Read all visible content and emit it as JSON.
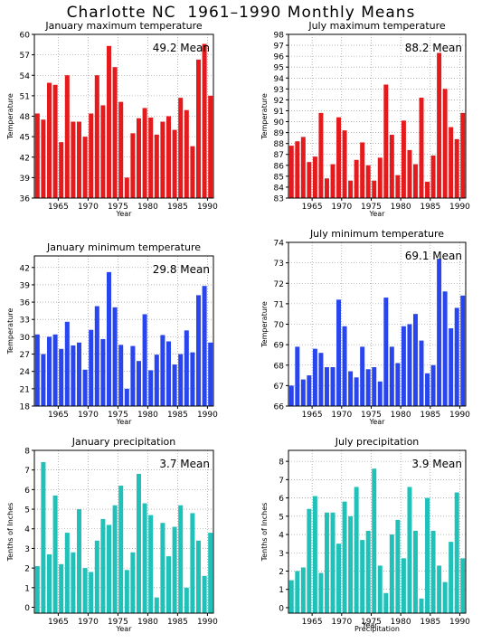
{
  "page_title": "Charlotte NC  1961–1990 Monthly Means",
  "chart_data": [
    {
      "type": "bar",
      "title": "January maximum temperature",
      "annotation": "49.2  Mean",
      "xlabel": "Year",
      "ylabel": "Temperature",
      "color": "#e41a1c",
      "ylim": [
        36,
        60
      ],
      "yticks": [
        36,
        39,
        42,
        45,
        48,
        51,
        54,
        57,
        60
      ],
      "xticks": [
        1965,
        1970,
        1975,
        1980,
        1985,
        1990
      ],
      "grid": true,
      "x": [
        1961,
        1962,
        1963,
        1964,
        1965,
        1966,
        1967,
        1968,
        1969,
        1970,
        1971,
        1972,
        1973,
        1974,
        1975,
        1976,
        1977,
        1978,
        1979,
        1980,
        1981,
        1982,
        1983,
        1984,
        1985,
        1986,
        1987,
        1988,
        1989,
        1990
      ],
      "values": [
        48.4,
        47.5,
        52.9,
        52.6,
        44.2,
        54.0,
        47.2,
        47.2,
        45.0,
        48.4,
        54.0,
        49.6,
        58.3,
        55.2,
        50.1,
        39.0,
        45.5,
        47.7,
        49.2,
        47.8,
        45.3,
        47.2,
        48.0,
        46.0,
        50.7,
        48.9,
        43.6,
        56.3,
        58.6,
        51.0
      ]
    },
    {
      "type": "bar",
      "title": "July maximum temperature",
      "annotation": "88.2  Mean",
      "xlabel": "Year",
      "ylabel": "Temperature",
      "color": "#e41a1c",
      "ylim": [
        83,
        98
      ],
      "yticks": [
        83,
        84,
        85,
        86,
        87,
        88,
        89,
        90,
        91,
        92,
        93,
        94,
        95,
        96,
        97,
        98
      ],
      "xticks": [
        1965,
        1970,
        1975,
        1980,
        1985,
        1990
      ],
      "grid": true,
      "x": [
        1961,
        1962,
        1963,
        1964,
        1965,
        1966,
        1967,
        1968,
        1969,
        1970,
        1971,
        1972,
        1973,
        1974,
        1975,
        1976,
        1977,
        1978,
        1979,
        1980,
        1981,
        1982,
        1983,
        1984,
        1985,
        1986,
        1987,
        1988,
        1989,
        1990
      ],
      "values": [
        87.8,
        88.2,
        88.6,
        86.3,
        86.8,
        90.8,
        84.8,
        86.1,
        90.4,
        89.2,
        84.6,
        86.5,
        88.1,
        86.0,
        84.6,
        86.7,
        93.4,
        88.8,
        85.1,
        90.1,
        87.4,
        86.1,
        92.2,
        84.5,
        86.9,
        96.3,
        93.0,
        89.5,
        88.4,
        90.8
      ]
    },
    {
      "type": "bar",
      "title": "January minimum temperature",
      "annotation": "29.8  Mean",
      "xlabel": "Year",
      "ylabel": "Temperature",
      "color": "#2845ee",
      "ylim": [
        18,
        44
      ],
      "yticks": [
        18,
        21,
        24,
        27,
        30,
        33,
        36,
        39,
        42
      ],
      "xticks": [
        1965,
        1970,
        1975,
        1980,
        1985,
        1990
      ],
      "grid": true,
      "x": [
        1961,
        1962,
        1963,
        1964,
        1965,
        1966,
        1967,
        1968,
        1969,
        1970,
        1971,
        1972,
        1973,
        1974,
        1975,
        1976,
        1977,
        1978,
        1979,
        1980,
        1981,
        1982,
        1983,
        1984,
        1985,
        1986,
        1987,
        1988,
        1989,
        1990
      ],
      "values": [
        30.4,
        27.0,
        30.0,
        30.4,
        27.9,
        32.6,
        28.5,
        29.0,
        24.3,
        31.2,
        35.3,
        29.6,
        41.2,
        35.1,
        28.6,
        21.0,
        28.4,
        25.8,
        33.9,
        24.2,
        26.9,
        30.3,
        29.2,
        25.2,
        27.0,
        31.1,
        27.3,
        37.2,
        38.8,
        29.0
      ]
    },
    {
      "type": "bar",
      "title": "July minimum temperature",
      "annotation": "69.1  Mean",
      "xlabel": "Year",
      "ylabel": "Temperature",
      "color": "#2845ee",
      "ylim": [
        66,
        74
      ],
      "yticks": [
        66,
        67,
        68,
        69,
        70,
        71,
        72,
        73,
        74
      ],
      "xticks": [
        1965,
        1970,
        1975,
        1980,
        1985,
        1990
      ],
      "grid": true,
      "x": [
        1961,
        1962,
        1963,
        1964,
        1965,
        1966,
        1967,
        1968,
        1969,
        1970,
        1971,
        1972,
        1973,
        1974,
        1975,
        1976,
        1977,
        1978,
        1979,
        1980,
        1981,
        1982,
        1983,
        1984,
        1985,
        1986,
        1987,
        1988,
        1989,
        1990
      ],
      "values": [
        67.0,
        68.9,
        67.3,
        67.5,
        68.8,
        68.6,
        67.9,
        67.9,
        71.2,
        69.9,
        67.7,
        67.4,
        68.9,
        67.8,
        67.9,
        67.2,
        71.3,
        68.9,
        68.1,
        69.9,
        70.0,
        70.5,
        69.2,
        67.6,
        68.0,
        73.2,
        71.6,
        69.8,
        70.8,
        71.4
      ]
    },
    {
      "type": "bar",
      "title": "January precipitation",
      "annotation": "3.7  Mean",
      "xlabel": "Year",
      "ylabel": "Tenths of Inches",
      "color": "#20c1b8",
      "ylim": [
        -0.3,
        8
      ],
      "yticks": [
        0,
        1,
        2,
        3,
        4,
        5,
        6,
        7,
        8
      ],
      "xticks": [
        1965,
        1970,
        1975,
        1980,
        1985,
        1990
      ],
      "grid": true,
      "x": [
        1961,
        1962,
        1963,
        1964,
        1965,
        1966,
        1967,
        1968,
        1969,
        1970,
        1971,
        1972,
        1973,
        1974,
        1975,
        1976,
        1977,
        1978,
        1979,
        1980,
        1981,
        1982,
        1983,
        1984,
        1985,
        1986,
        1987,
        1988,
        1989,
        1990
      ],
      "values": [
        2.1,
        7.4,
        2.7,
        5.7,
        2.2,
        3.8,
        2.8,
        5.0,
        2.0,
        1.8,
        3.4,
        4.5,
        4.2,
        5.2,
        6.2,
        1.9,
        2.8,
        6.8,
        5.3,
        4.7,
        0.5,
        4.3,
        2.6,
        4.1,
        5.2,
        1.0,
        4.8,
        3.4,
        1.6,
        3.8
      ]
    },
    {
      "type": "bar",
      "title": "July precipitation",
      "annotation": "3.9  Mean",
      "xlabel": "Precipitation",
      "ylabel": "Tenths of Inches",
      "color": "#20c1b8",
      "ylim": [
        -0.3,
        8.6
      ],
      "yticks": [
        0,
        1,
        2,
        3,
        4,
        5,
        6,
        7,
        8
      ],
      "xticks": [
        1965,
        1970,
        1975,
        1980,
        1985,
        1990
      ],
      "xlabel_extra": "Year",
      "grid": true,
      "x": [
        1961,
        1962,
        1963,
        1964,
        1965,
        1966,
        1967,
        1968,
        1969,
        1970,
        1971,
        1972,
        1973,
        1974,
        1975,
        1976,
        1977,
        1978,
        1979,
        1980,
        1981,
        1982,
        1983,
        1984,
        1985,
        1986,
        1987,
        1988,
        1989,
        1990
      ],
      "values": [
        1.5,
        2.0,
        2.2,
        5.4,
        6.1,
        1.9,
        5.2,
        5.2,
        3.5,
        5.8,
        5.0,
        6.6,
        3.7,
        4.2,
        7.6,
        2.3,
        0.8,
        4.0,
        4.8,
        2.7,
        6.6,
        4.2,
        0.5,
        6.0,
        4.2,
        2.3,
        1.4,
        3.6,
        6.3,
        2.7
      ]
    }
  ]
}
